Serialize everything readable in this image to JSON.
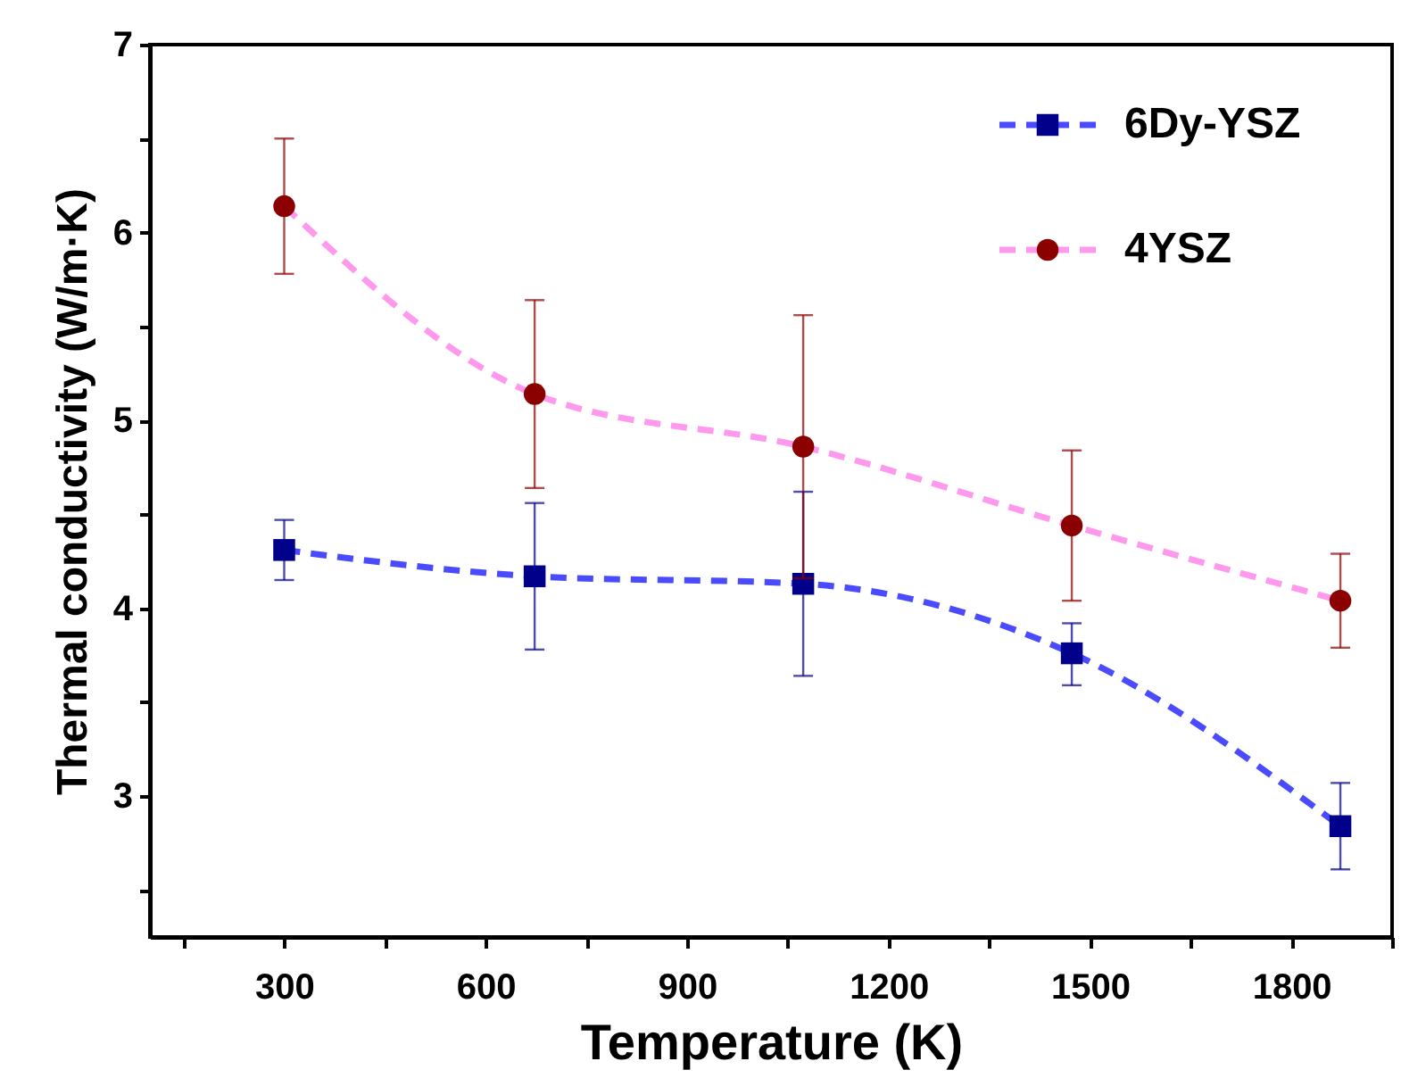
{
  "chart_data": {
    "type": "line",
    "xlabel": "Temperature (K)",
    "ylabel": "Thermal conductivity (W/m·K)",
    "x": [
      300,
      673,
      1073,
      1473,
      1873
    ],
    "xlim": [
      100,
      1950
    ],
    "ylim": [
      2.25,
      7
    ],
    "xticks": [
      {
        "value": 150,
        "label": null
      },
      300,
      {
        "value": 450,
        "label": null
      },
      600,
      {
        "value": 750,
        "label": null
      },
      900,
      {
        "value": 1050,
        "label": null
      },
      1200,
      {
        "value": 1350,
        "label": null
      },
      1500,
      {
        "value": 1650,
        "label": null
      },
      1800,
      {
        "value": 1950,
        "label": null
      }
    ],
    "yticks": [
      {
        "value": 2.5,
        "label": null
      },
      3,
      {
        "value": 3.5,
        "label": null
      },
      4,
      {
        "value": 4.5,
        "label": null
      },
      5,
      {
        "value": 5.5,
        "label": null
      },
      6,
      {
        "value": 6.5,
        "label": null
      },
      7
    ],
    "series": [
      {
        "name": "6Dy-YSZ",
        "color": "#4a4aff",
        "colors": [
          "#00008b",
          "#00008b",
          "#00008b",
          "#00008b",
          "#00008b"
        ],
        "marker": "square",
        "values": [
          4.31,
          4.17,
          4.13,
          3.76,
          2.84
        ],
        "errors": [
          [
            4.15,
            4.47
          ],
          [
            3.78,
            4.56
          ],
          [
            3.64,
            4.62
          ],
          [
            3.59,
            3.92
          ],
          [
            2.61,
            3.07
          ]
        ]
      },
      {
        "name": "4YSZ",
        "color": "#ff99ee",
        "colors": [
          "#8b0000",
          "#8b0000",
          "#8b0000",
          "#8b0000",
          "#8b0000"
        ],
        "marker": "circle",
        "values": [
          6.14,
          5.14,
          4.86,
          4.44,
          4.04
        ],
        "errors": [
          [
            5.78,
            6.5
          ],
          [
            4.64,
            5.64
          ],
          [
            4.16,
            5.56
          ],
          [
            4.04,
            4.84
          ],
          [
            3.79,
            4.29
          ]
        ]
      }
    ],
    "line_style": "dashed",
    "grid": false,
    "legend": "top right"
  }
}
